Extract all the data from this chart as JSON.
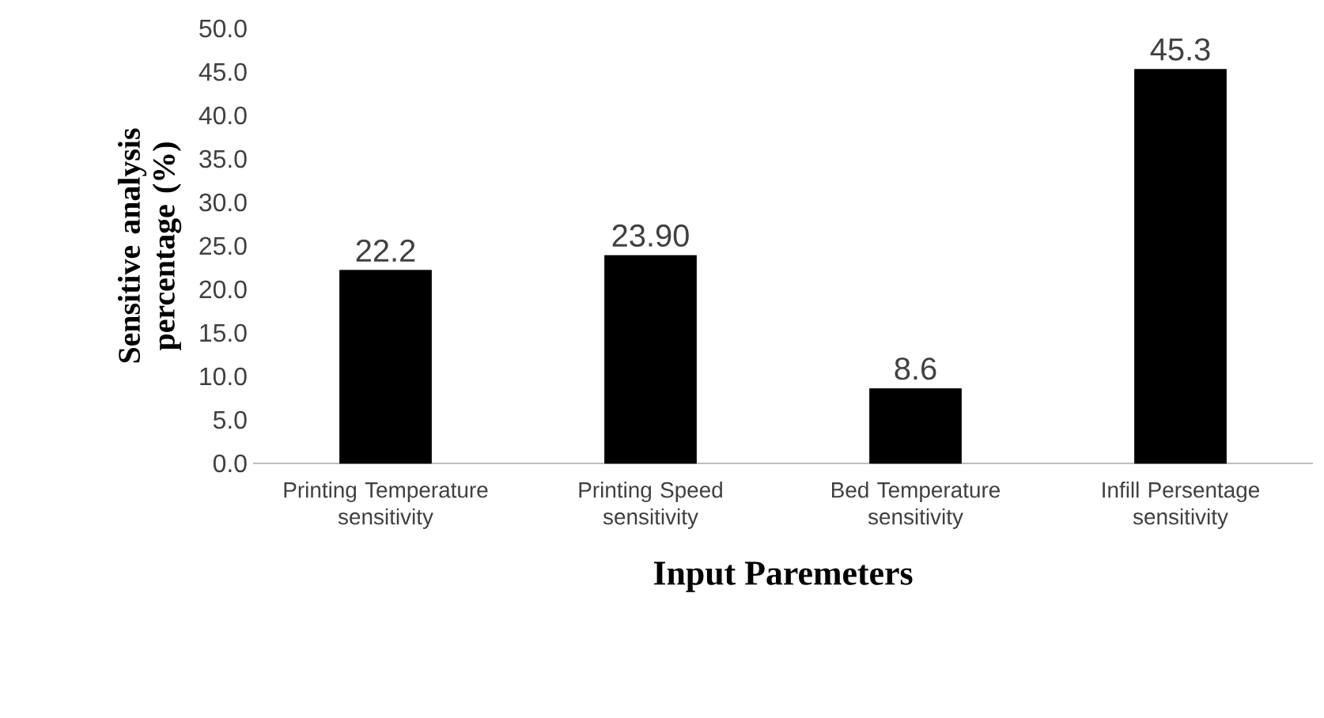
{
  "chart_data": {
    "type": "bar",
    "categories": [
      "Printing Temperature sensitivity",
      "Printing Speed sensitivity",
      "Bed Temperature sensitivity",
      "Infill Persentage sensitivity"
    ],
    "values": [
      22.2,
      23.9,
      8.6,
      45.3
    ],
    "value_labels": [
      "22.2",
      "23.90",
      "8.6",
      "45.3"
    ],
    "color": "#000000",
    "xlabel": "Input Paremeters",
    "ylabel": "Sensitive analysis percentage (%)",
    "ylim": [
      0,
      50
    ],
    "yticks": [
      {
        "value": 0,
        "label": "0.0"
      },
      {
        "value": 5,
        "label": "5.0"
      },
      {
        "value": 10,
        "label": "10.0"
      },
      {
        "value": 15,
        "label": "15.0"
      },
      {
        "value": 20,
        "label": "20.0"
      },
      {
        "value": 25,
        "label": "25.0"
      },
      {
        "value": 30,
        "label": "30.0"
      },
      {
        "value": 35,
        "label": "35.0"
      },
      {
        "value": 40,
        "label": "40.0"
      },
      {
        "value": 45,
        "label": "45.0"
      },
      {
        "value": 50,
        "label": "50.0"
      }
    ],
    "grid": false
  }
}
